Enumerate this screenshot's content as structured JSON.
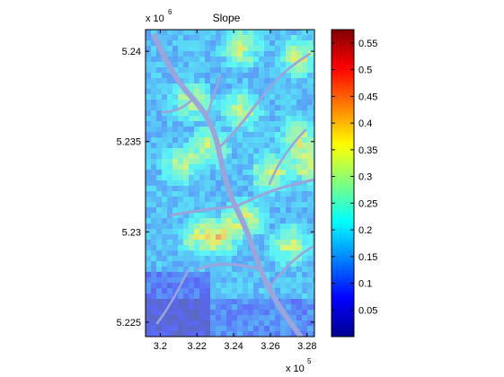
{
  "chart_data": {
    "type": "heatmap",
    "title": "Slope",
    "xlabel": "",
    "ylabel": "",
    "x_exponent_label": "x 10",
    "x_exponent": "5",
    "y_exponent_label": "x 10",
    "y_exponent": "6",
    "x_tick_labels": [
      "3.2",
      "3.22",
      "3.24",
      "3.26",
      "3.28"
    ],
    "x_ticks": [
      3.2,
      3.22,
      3.24,
      3.26,
      3.28
    ],
    "xlim": [
      3.192,
      3.284
    ],
    "y_tick_labels": [
      "5.225",
      "5.23",
      "5.235",
      "5.24"
    ],
    "y_ticks": [
      5.225,
      5.23,
      5.235,
      5.24
    ],
    "ylim": [
      5.2242,
      5.2412
    ],
    "colorbar": {
      "colormap": "jet",
      "range": [
        0,
        0.575
      ],
      "tick_labels": [
        "0.05",
        "0.1",
        "0.15",
        "0.2",
        "0.25",
        "0.3",
        "0.35",
        "0.4",
        "0.45",
        "0.5",
        "0.55"
      ],
      "ticks": [
        0.05,
        0.1,
        0.15,
        0.2,
        0.25,
        0.3,
        0.35,
        0.4,
        0.45,
        0.5,
        0.55
      ]
    },
    "grid": false
  }
}
